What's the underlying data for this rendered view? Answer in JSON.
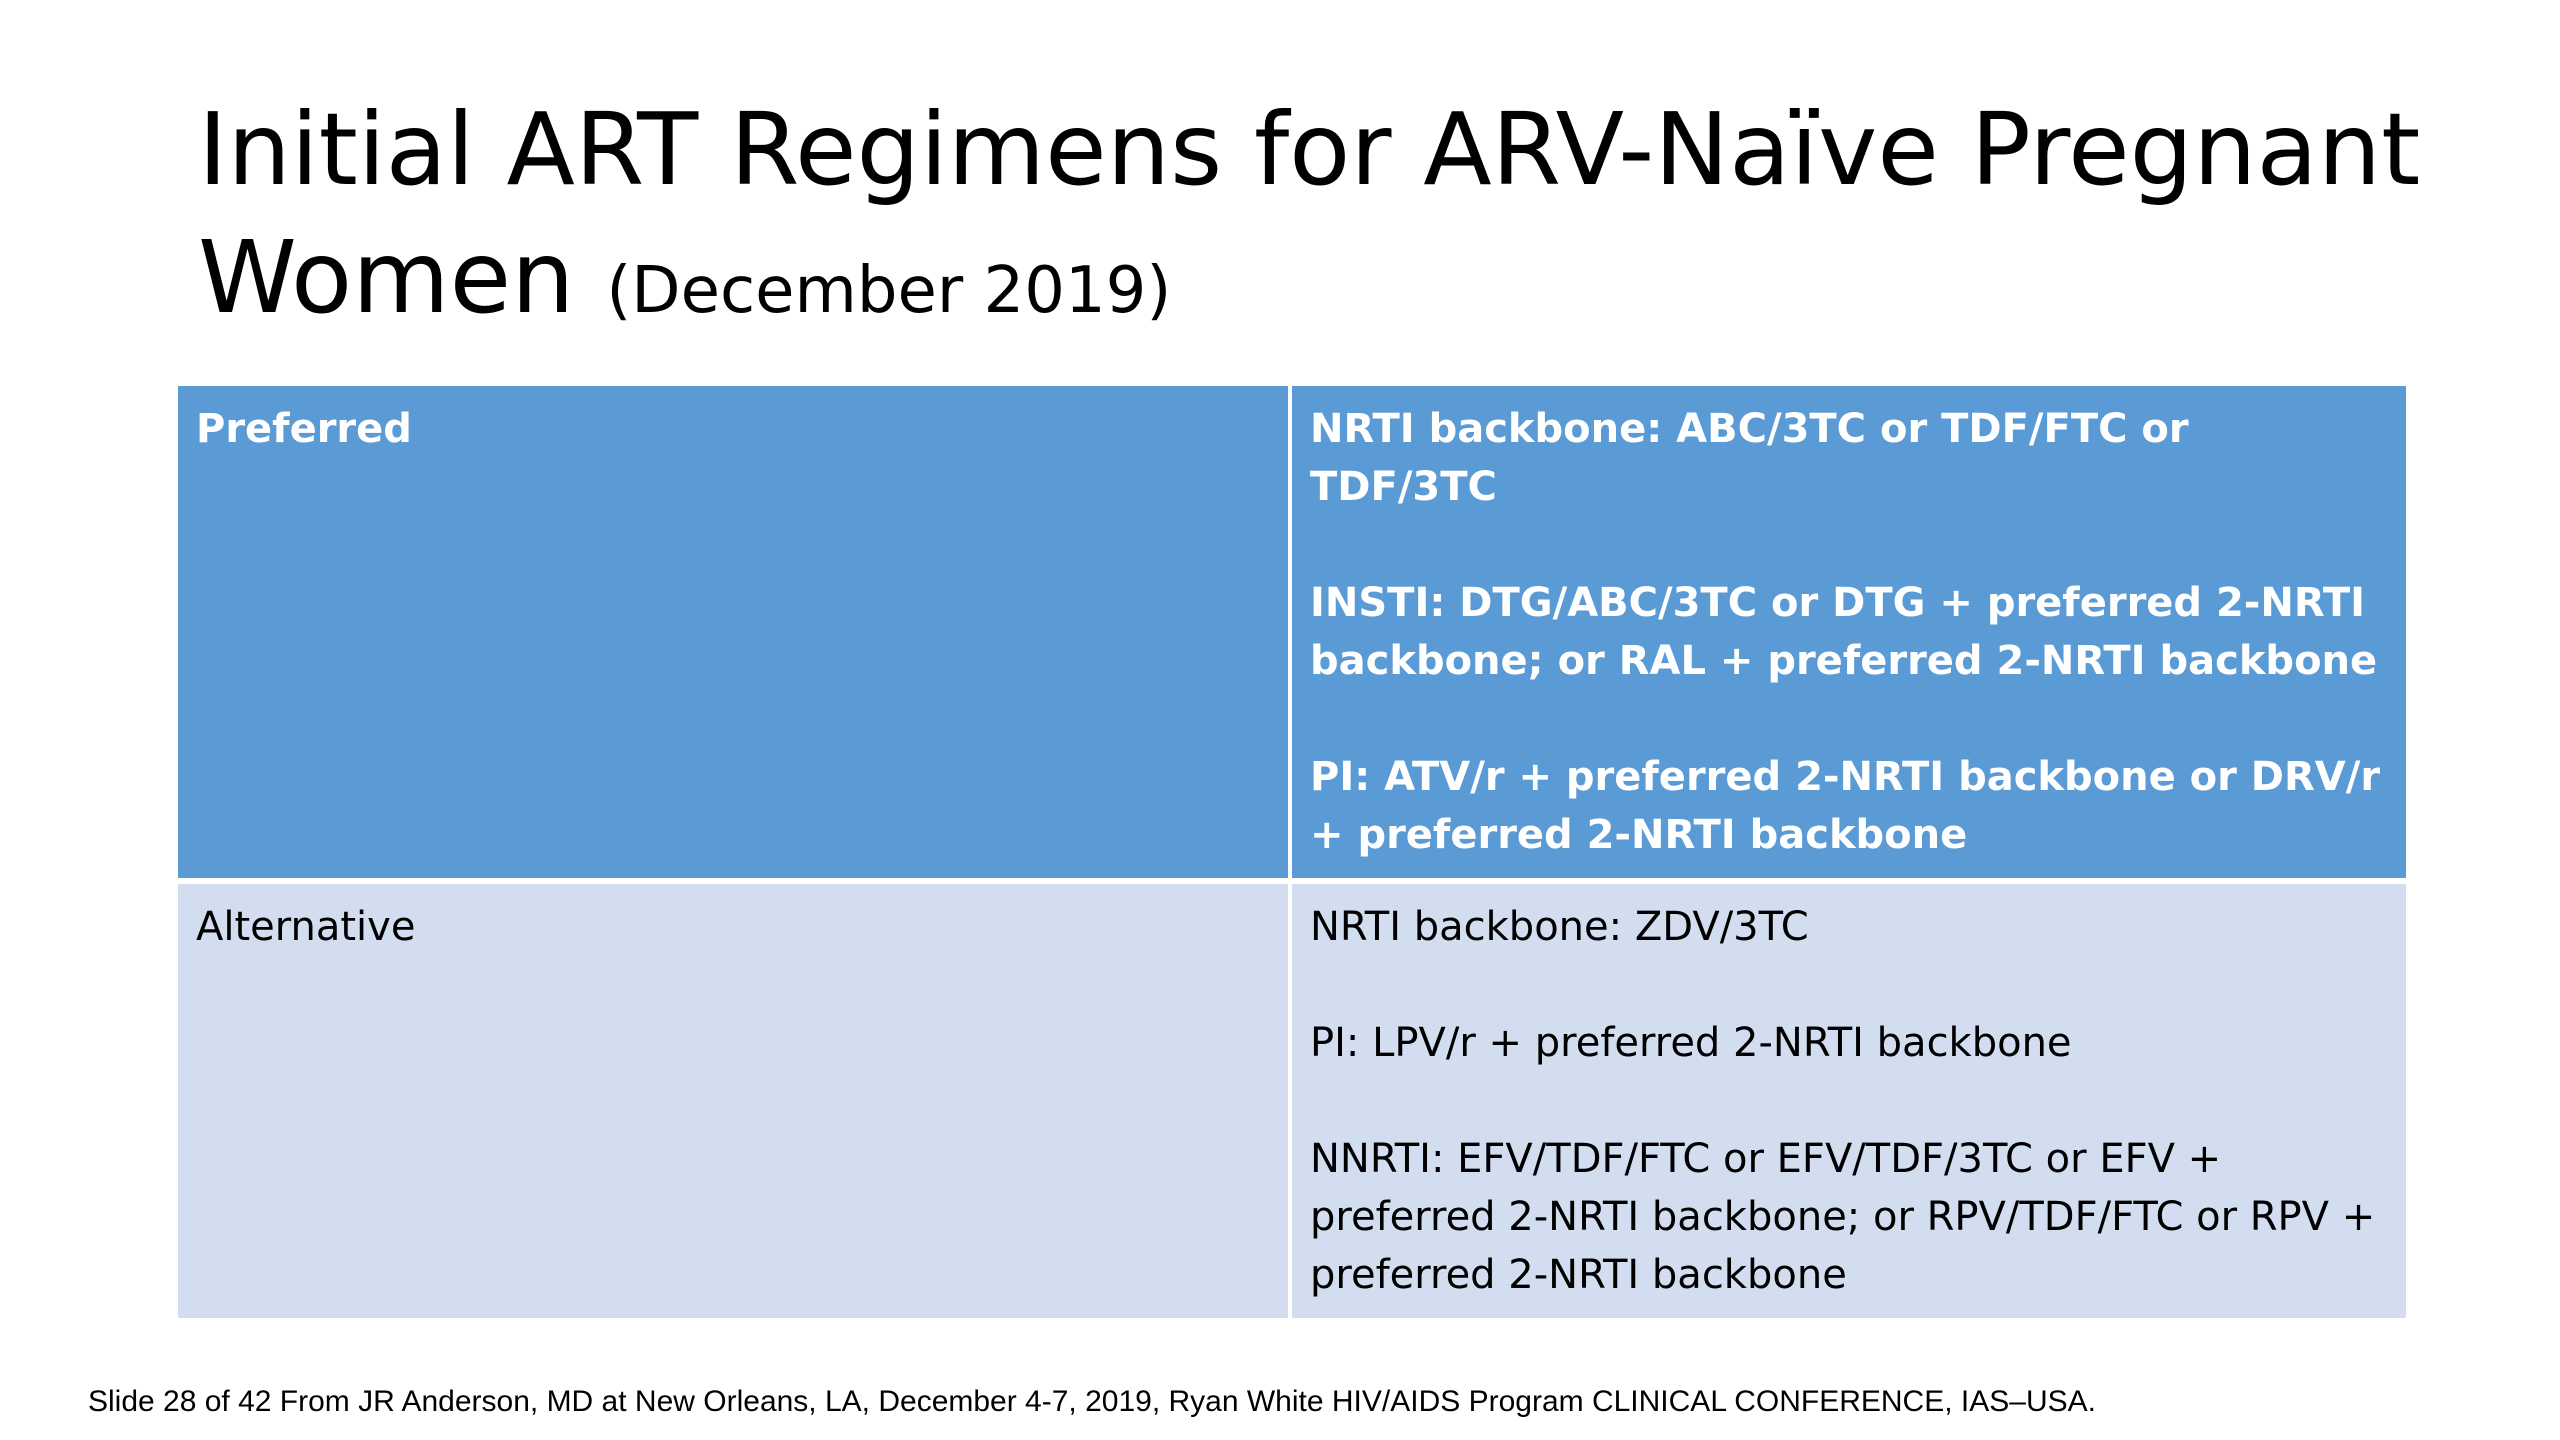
{
  "slide": {
    "title_main": "Initial ART Regimens for ARV-Naïve Pregnant Women",
    "title_sub": "(December 2019)",
    "table": {
      "rows": [
        {
          "category": "Preferred",
          "entries": [
            "NRTI backbone: ABC/3TC or TDF/FTC or TDF/3TC",
            "INSTI: DTG/ABC/3TC or DTG + preferred 2-NRTI backbone; or RAL + preferred 2-NRTI backbone",
            "PI: ATV/r + preferred 2-NRTI backbone or DRV/r + preferred 2-NRTI backbone"
          ]
        },
        {
          "category": "Alternative",
          "entries": [
            "NRTI backbone: ZDV/3TC",
            "PI: LPV/r + preferred 2-NRTI backbone",
            "NNRTI: EFV/TDF/FTC or EFV/TDF/3TC or EFV + preferred 2-NRTI backbone;  or RPV/TDF/FTC or RPV + preferred 2-NRTI backbone"
          ]
        }
      ]
    },
    "footer": "Slide 28 of 42 From JR Anderson, MD at New Orleans, LA, December 4-7, 2019, Ryan White HIV/AIDS Program CLINICAL CONFERENCE, IAS–USA."
  },
  "colors": {
    "header_row_bg": "#5b9bd5",
    "alt_row_bg": "#d2deef",
    "header_text": "#ffffff",
    "body_text": "#000000"
  }
}
